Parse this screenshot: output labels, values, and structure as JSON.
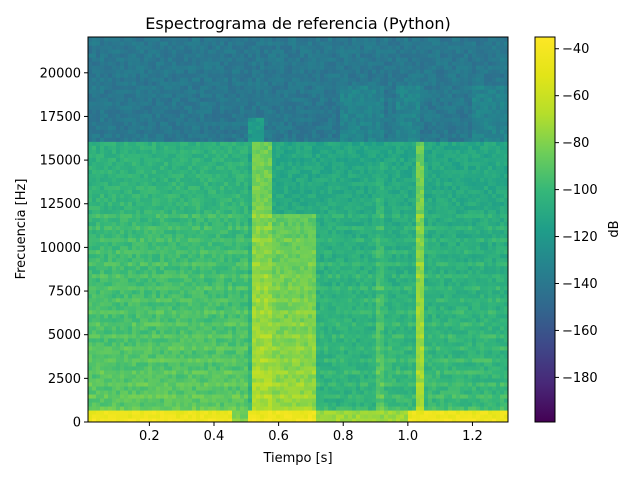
{
  "chart_data": {
    "type": "heatmap",
    "title": "Espectrograma de referencia (Python)",
    "xlabel": "Tiempo [s]",
    "ylabel": "Frecuencia [Hz]",
    "xlim": [
      0.01,
      1.31
    ],
    "ylim": [
      0,
      22050
    ],
    "x_ticks": [
      0.2,
      0.4,
      0.6,
      0.8,
      1.0,
      1.2
    ],
    "x_tick_labels": [
      "0.2",
      "0.4",
      "0.6",
      "0.8",
      "1.0",
      "1.2"
    ],
    "y_ticks": [
      0,
      2500,
      5000,
      7500,
      10000,
      12500,
      15000,
      17500,
      20000
    ],
    "y_tick_labels": [
      "0",
      "2500",
      "5000",
      "7500",
      "10000",
      "12500",
      "15000",
      "17500",
      "20000"
    ],
    "colorbar": {
      "label": "dB",
      "range": [
        -199,
        -35
      ],
      "ticks": [
        -40,
        -60,
        -80,
        -100,
        -120,
        -140,
        -160,
        -180
      ],
      "tick_labels": [
        "−40",
        "−60",
        "−80",
        "−100",
        "−120",
        "−140",
        "−160",
        "−180"
      ],
      "colormap": "viridis"
    },
    "approximate_levels_db": {
      "background_high_freq": -140,
      "band_below_16kHz": -100,
      "bursts": [
        {
          "t_start": 0.01,
          "t_end": 0.5,
          "f_max": 16000,
          "level_db": -90
        },
        {
          "t_start": 0.52,
          "t_end": 0.58,
          "f_max": 16000,
          "level_db": -70
        },
        {
          "t_start": 0.58,
          "t_end": 0.72,
          "f_max": 12000,
          "level_db": -75
        },
        {
          "t_start": 0.9,
          "t_end": 0.93,
          "f_max": 15000,
          "level_db": -90
        },
        {
          "t_start": 1.02,
          "t_end": 1.05,
          "f_max": 16000,
          "level_db": -70
        }
      ],
      "low_freq_peak_hz": 400,
      "low_freq_peak_db": -45
    },
    "grid": false
  }
}
